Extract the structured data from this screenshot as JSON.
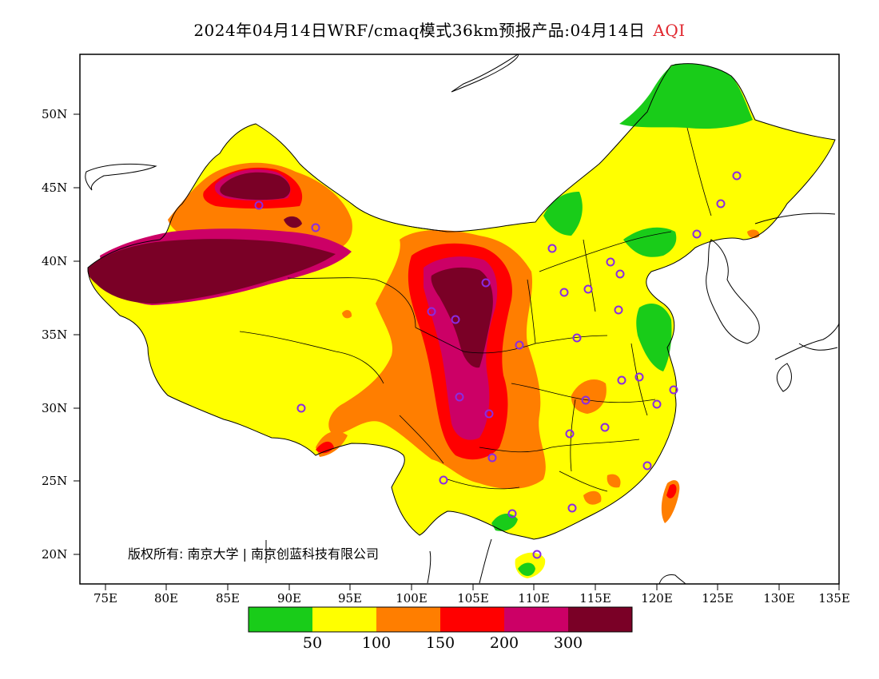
{
  "title": {
    "main": "2024年04月14日WRF/cmaq模式36km预报产品:04月14日",
    "variable": "AQI",
    "variable_color": "#e0262e"
  },
  "latitude_labels": [
    "50N",
    "45N",
    "40N",
    "35N",
    "30N",
    "25N",
    "20N"
  ],
  "longitude_labels": [
    "75E",
    "80E",
    "85E",
    "90E",
    "95E",
    "100E",
    "105E",
    "110E",
    "115E",
    "120E",
    "125E",
    "130E",
    "135E"
  ],
  "copyright": "版权所有: 南京大学 | 南京创蓝科技有限公司",
  "legend": {
    "colors": [
      "#19cc19",
      "#ffff00",
      "#ff7e00",
      "#ff0000",
      "#cc0066",
      "#7a0026"
    ],
    "thresholds": [
      "50",
      "100",
      "150",
      "200",
      "300"
    ]
  }
}
